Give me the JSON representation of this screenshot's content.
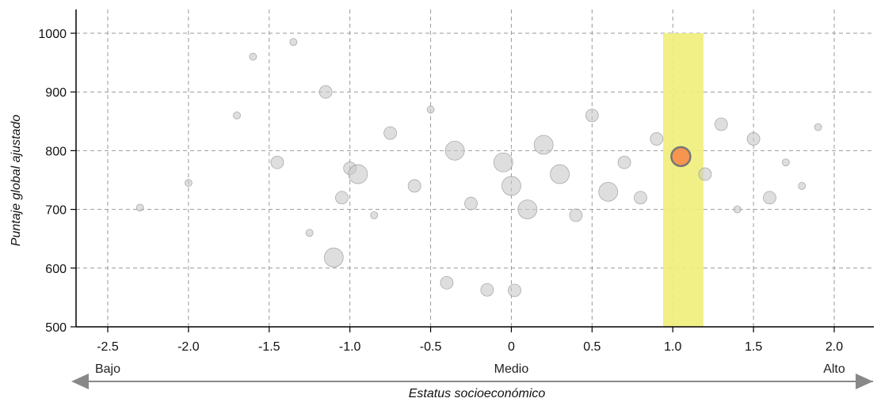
{
  "chart_data": {
    "type": "scatter",
    "title": "",
    "xlabel": "Estatus socioeconómico",
    "ylabel": "Puntaje global ajustado",
    "xlim": [
      -2.75,
      2.25
    ],
    "ylim": [
      500,
      1000
    ],
    "x_ticks": [
      "-2.5",
      "-2.0",
      "-1.5",
      "-1.0",
      "-0.5",
      "0",
      "0.5",
      "1.0",
      "1.5",
      "2.0"
    ],
    "y_ticks": [
      "500",
      "600",
      "700",
      "800",
      "900",
      "1000"
    ],
    "grid": true,
    "x_categories": [
      {
        "label": "Bajo",
        "x": -2.5
      },
      {
        "label": "Medio",
        "x": 0.0
      },
      {
        "label": "Alto",
        "x": 2.0
      }
    ],
    "highlight_band": {
      "x_from": 0.94,
      "x_to": 1.19,
      "y_from": 500,
      "y_to": 1000,
      "color": "#f0ee7a"
    },
    "highlight_point": {
      "x": 1.05,
      "y": 790,
      "color": "#f5954f",
      "stroke": "#777777"
    },
    "point_color": "#c8c8c8",
    "series": [
      {
        "values": [
          {
            "x": -2.3,
            "y": 703,
            "s": 1
          },
          {
            "x": -2.0,
            "y": 745,
            "s": 1
          },
          {
            "x": -1.7,
            "y": 860,
            "s": 1
          },
          {
            "x": -1.6,
            "y": 960,
            "s": 1
          },
          {
            "x": -1.45,
            "y": 780,
            "s": 2
          },
          {
            "x": -1.35,
            "y": 985,
            "s": 1
          },
          {
            "x": -1.25,
            "y": 660,
            "s": 1
          },
          {
            "x": -1.15,
            "y": 900,
            "s": 2
          },
          {
            "x": -1.1,
            "y": 618,
            "s": 3
          },
          {
            "x": -1.05,
            "y": 720,
            "s": 2
          },
          {
            "x": -1.0,
            "y": 770,
            "s": 2
          },
          {
            "x": -0.95,
            "y": 760,
            "s": 3
          },
          {
            "x": -0.85,
            "y": 690,
            "s": 1
          },
          {
            "x": -0.75,
            "y": 830,
            "s": 2
          },
          {
            "x": -0.6,
            "y": 740,
            "s": 2
          },
          {
            "x": -0.5,
            "y": 870,
            "s": 1
          },
          {
            "x": -0.4,
            "y": 575,
            "s": 2
          },
          {
            "x": -0.35,
            "y": 800,
            "s": 3
          },
          {
            "x": -0.25,
            "y": 710,
            "s": 2
          },
          {
            "x": -0.15,
            "y": 563,
            "s": 2
          },
          {
            "x": -0.05,
            "y": 780,
            "s": 3
          },
          {
            "x": 0.0,
            "y": 740,
            "s": 3
          },
          {
            "x": 0.02,
            "y": 562,
            "s": 2
          },
          {
            "x": 0.1,
            "y": 700,
            "s": 3
          },
          {
            "x": 0.2,
            "y": 810,
            "s": 3
          },
          {
            "x": 0.3,
            "y": 760,
            "s": 3
          },
          {
            "x": 0.4,
            "y": 690,
            "s": 2
          },
          {
            "x": 0.5,
            "y": 860,
            "s": 2
          },
          {
            "x": 0.6,
            "y": 730,
            "s": 3
          },
          {
            "x": 0.7,
            "y": 780,
            "s": 2
          },
          {
            "x": 0.8,
            "y": 720,
            "s": 2
          },
          {
            "x": 0.9,
            "y": 820,
            "s": 2
          },
          {
            "x": 1.2,
            "y": 760,
            "s": 2
          },
          {
            "x": 1.3,
            "y": 845,
            "s": 2
          },
          {
            "x": 1.4,
            "y": 700,
            "s": 1
          },
          {
            "x": 1.5,
            "y": 820,
            "s": 2
          },
          {
            "x": 1.6,
            "y": 720,
            "s": 2
          },
          {
            "x": 1.7,
            "y": 780,
            "s": 1
          },
          {
            "x": 1.8,
            "y": 740,
            "s": 1
          },
          {
            "x": 1.9,
            "y": 840,
            "s": 1
          }
        ]
      }
    ]
  }
}
